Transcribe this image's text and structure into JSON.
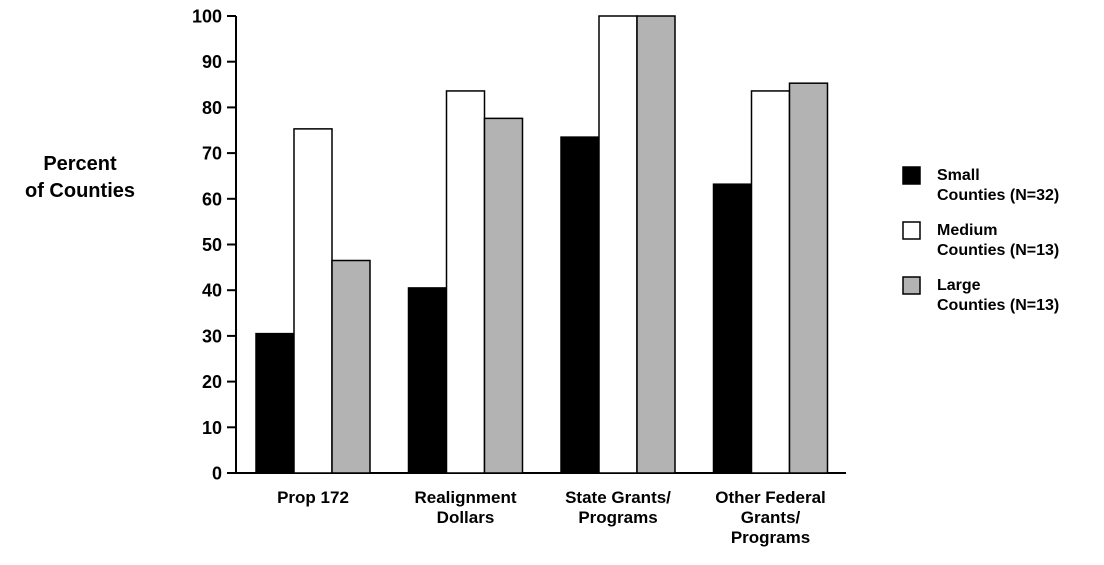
{
  "chart_data": {
    "type": "bar",
    "title": "",
    "xlabel": "",
    "ylabel": [
      "Percent",
      "of Counties"
    ],
    "ylim": [
      0,
      100
    ],
    "yticks": [
      0,
      10,
      20,
      30,
      40,
      50,
      60,
      70,
      80,
      90,
      100
    ],
    "grid": false,
    "legend_position": "right",
    "categories": [
      [
        "Prop 172"
      ],
      [
        "Realignment",
        "Dollars"
      ],
      [
        "State Grants/",
        "Programs"
      ],
      [
        "Other Federal",
        "Grants/",
        "Programs"
      ]
    ],
    "series": [
      {
        "name": [
          "Small",
          "Counties (N=32)"
        ],
        "color": "#000000",
        "values": [
          30.5,
          40.5,
          73.5,
          63.2
        ]
      },
      {
        "name": [
          "Medium",
          "Counties (N=13)"
        ],
        "color": "#ffffff",
        "values": [
          75.3,
          83.6,
          100,
          83.6
        ]
      },
      {
        "name": [
          "Large",
          "Counties (N=13)"
        ],
        "color": "#b3b3b3",
        "values": [
          46.5,
          77.6,
          100,
          85.3
        ]
      }
    ]
  }
}
